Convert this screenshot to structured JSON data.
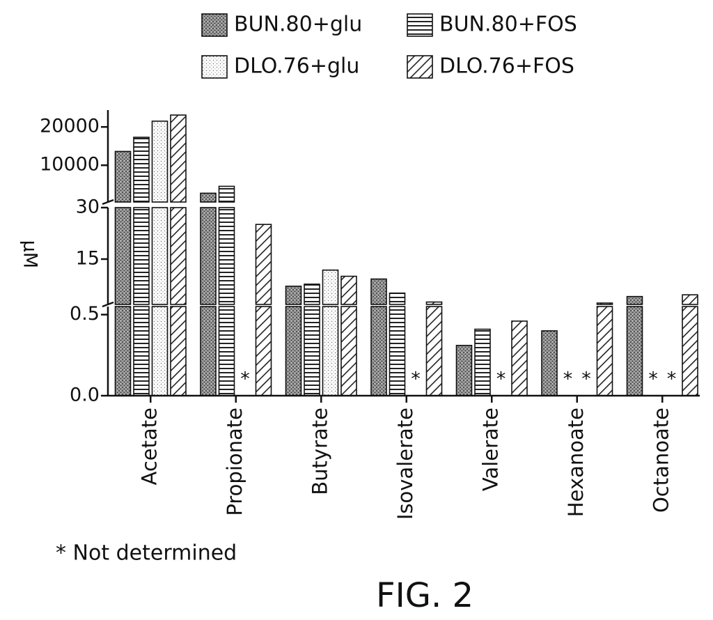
{
  "chart_data": {
    "type": "bar",
    "title": "FIG. 2",
    "y_label": "μM",
    "footnote": "* Not determined",
    "not_determined_symbol": "*",
    "categories": [
      "Acetate",
      "Propionate",
      "Butyrate",
      "Isovalerate",
      "Valerate",
      "Hexanoate",
      "Octanoate"
    ],
    "series": [
      {
        "name": "BUN.80+glu",
        "pattern": "stipple",
        "values": [
          13600,
          2700,
          7.1,
          9.2,
          0.31,
          0.4,
          4.1
        ]
      },
      {
        "name": "BUN.80+FOS",
        "pattern": "horizontal",
        "values": [
          17300,
          4500,
          7.7,
          5.1,
          0.41,
          null,
          null
        ]
      },
      {
        "name": "DLO.76+glu",
        "pattern": "light-dots",
        "values": [
          21500,
          null,
          11.8,
          null,
          null,
          null,
          null
        ]
      },
      {
        "name": "DLO.76+FOS",
        "pattern": "diagonal",
        "values": [
          23100,
          25.1,
          10,
          2.5,
          0.46,
          2.2,
          4.6
        ]
      }
    ],
    "y_segments": [
      {
        "ylim": [
          0,
          0.55
        ],
        "yticks": [
          {
            "value": 0,
            "label": "0.0"
          },
          0.5
        ]
      },
      {
        "ylim": [
          1.8,
          30
        ],
        "yticks": [
          15,
          30
        ]
      },
      {
        "ylim": [
          400,
          24400
        ],
        "yticks": [
          10000,
          20000
        ]
      }
    ]
  }
}
